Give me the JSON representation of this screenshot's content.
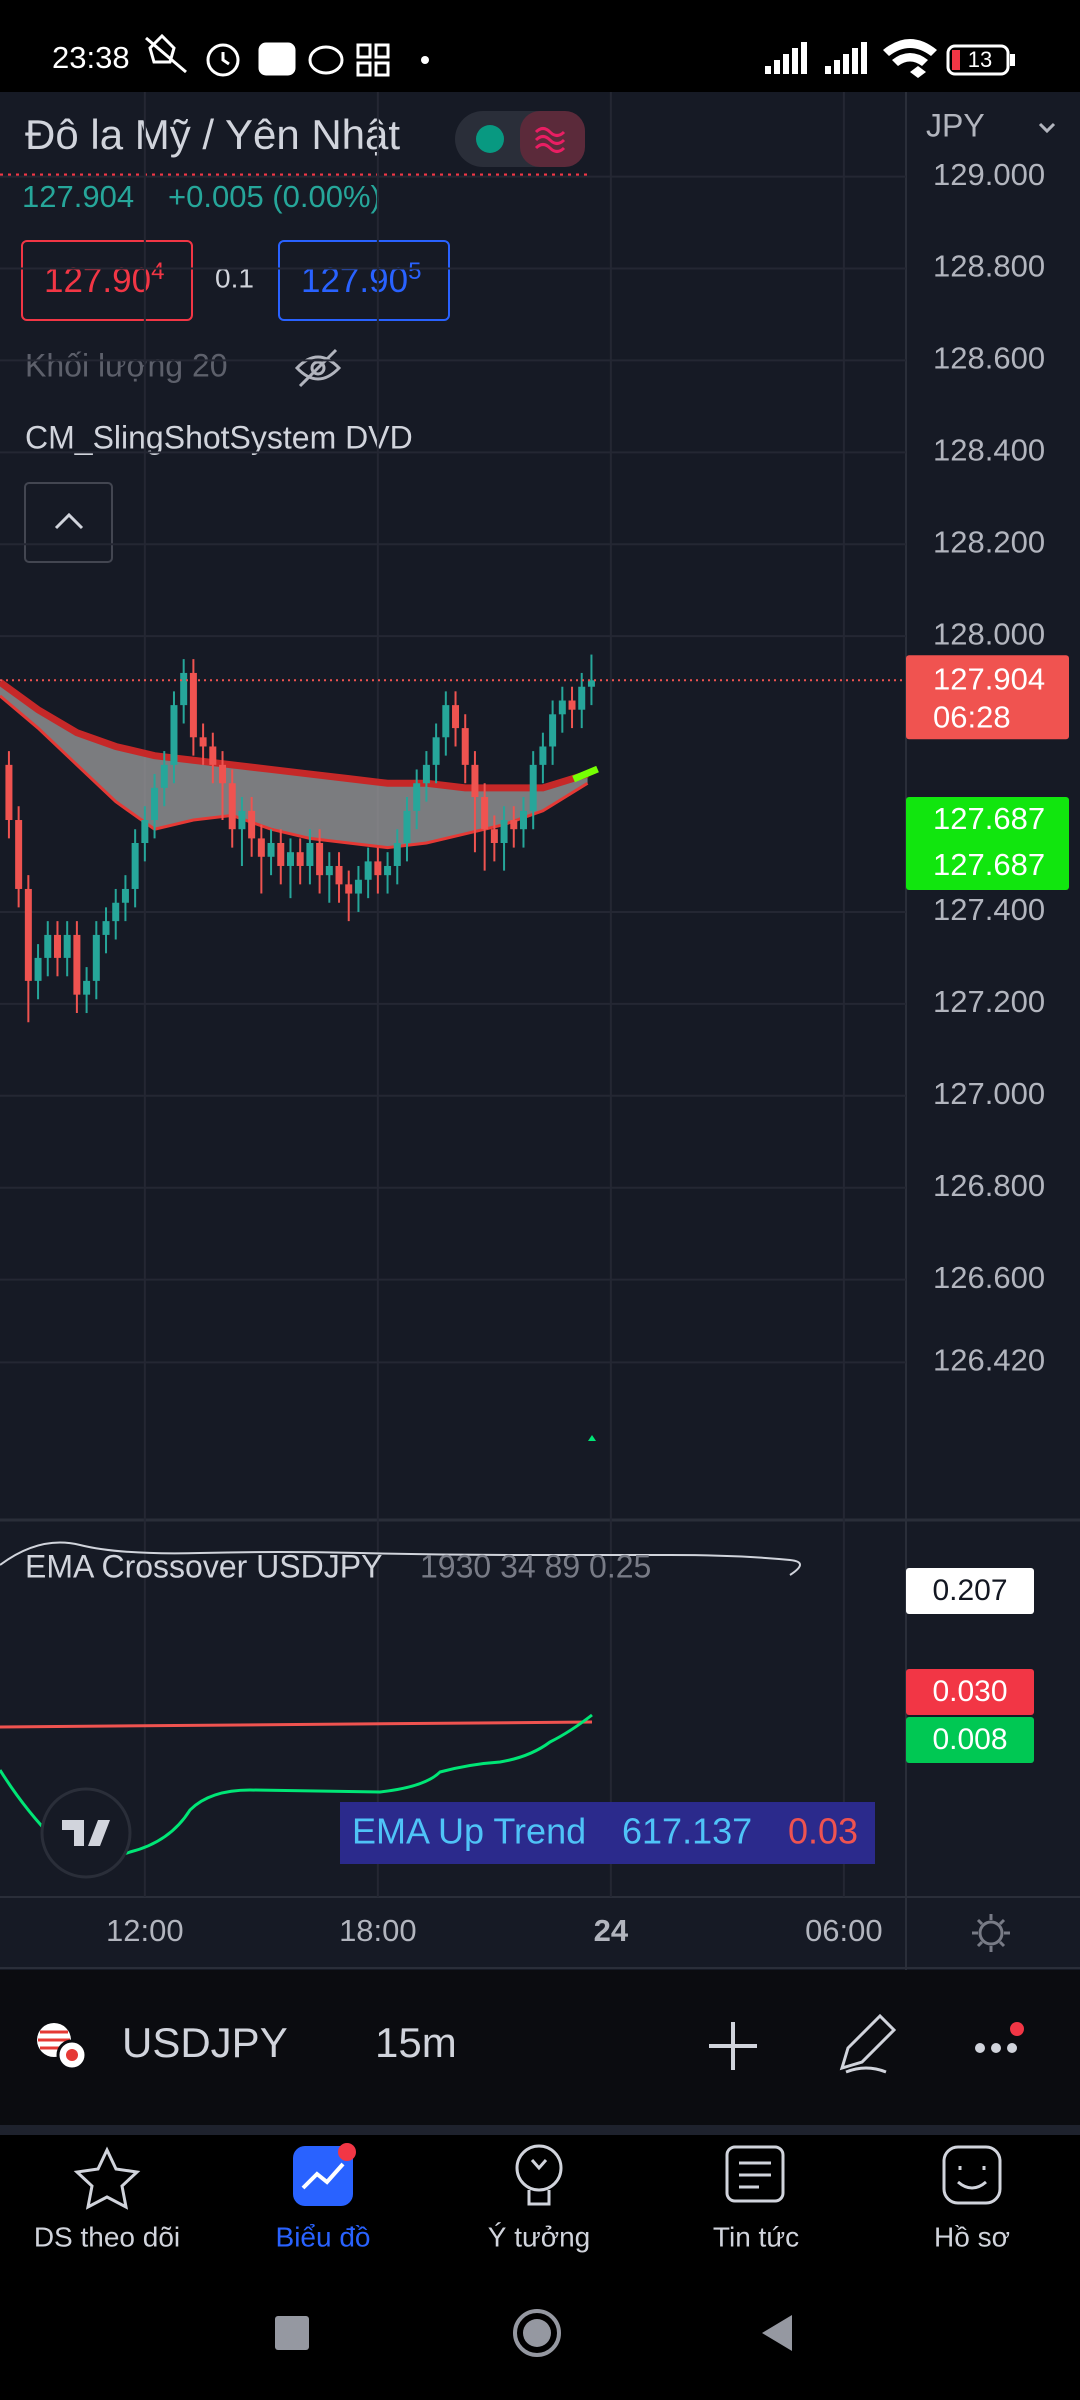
{
  "status_bar": {
    "time": "23:38",
    "battery": "13"
  },
  "header": {
    "title": "Đô la Mỹ / Yên Nhật",
    "currency": "JPY",
    "last_price": "127.904",
    "change": "+0.005 (0.00%)",
    "sell": {
      "main": "127.90",
      "pip": "4"
    },
    "spread": "0.1",
    "buy": {
      "main": "127.90",
      "pip": "5"
    },
    "volume_label": "Khối lượng 20",
    "indicator_name": "CM_SlingShotSystem DVD"
  },
  "price_chart": {
    "type": "candlestick",
    "x": [
      8.5,
      8.75,
      9,
      9.25,
      9.5,
      9.75,
      10,
      10.25,
      10.5,
      10.75,
      11,
      11.25,
      11.5,
      11.75,
      12,
      12.25,
      12.5,
      12.75,
      13,
      13.25,
      13.5,
      13.75,
      14,
      14.25,
      14.5,
      14.75,
      15,
      15.25,
      15.5,
      15.75,
      16,
      16.25,
      16.5,
      16.75,
      17,
      17.25,
      17.5,
      17.75,
      18,
      18.25,
      18.5,
      18.75,
      19,
      19.25,
      19.5,
      19.75,
      20,
      20.25,
      20.5,
      20.75,
      21,
      21.25,
      21.5,
      21.75,
      22,
      22.25,
      22.5,
      22.75,
      23,
      23.25,
      23.5
    ],
    "open": [
      127.72,
      127.6,
      127.45,
      127.25,
      127.3,
      127.35,
      127.3,
      127.35,
      127.22,
      127.25,
      127.35,
      127.38,
      127.42,
      127.45,
      127.55,
      127.6,
      127.67,
      127.72,
      127.85,
      127.92,
      127.78,
      127.76,
      127.72,
      127.68,
      127.58,
      127.62,
      127.56,
      127.52,
      127.55,
      127.5,
      127.53,
      127.5,
      127.55,
      127.48,
      127.5,
      127.46,
      127.44,
      127.47,
      127.51,
      127.48,
      127.5,
      127.55,
      127.62,
      127.68,
      127.72,
      127.78,
      127.85,
      127.8,
      127.72,
      127.65,
      127.58,
      127.55,
      127.6,
      127.58,
      127.62,
      127.72,
      127.76,
      127.83,
      127.86,
      127.84,
      127.89
    ],
    "high": [
      127.75,
      127.63,
      127.48,
      127.33,
      127.38,
      127.38,
      127.38,
      127.38,
      127.28,
      127.38,
      127.41,
      127.45,
      127.48,
      127.58,
      127.63,
      127.7,
      127.75,
      127.88,
      127.95,
      127.95,
      127.81,
      127.79,
      127.75,
      127.71,
      127.65,
      127.65,
      127.59,
      127.58,
      127.58,
      127.56,
      127.56,
      127.58,
      127.58,
      127.53,
      127.53,
      127.49,
      127.5,
      127.54,
      127.54,
      127.53,
      127.58,
      127.65,
      127.71,
      127.75,
      127.81,
      127.88,
      127.88,
      127.83,
      127.75,
      127.68,
      127.61,
      127.63,
      127.63,
      127.65,
      127.75,
      127.79,
      127.86,
      127.89,
      127.89,
      127.92,
      127.96
    ],
    "low": [
      127.56,
      127.41,
      127.16,
      127.21,
      127.26,
      127.26,
      127.26,
      127.18,
      127.18,
      127.21,
      127.31,
      127.34,
      127.38,
      127.41,
      127.51,
      127.56,
      127.63,
      127.68,
      127.81,
      127.74,
      127.72,
      127.68,
      127.6,
      127.54,
      127.5,
      127.52,
      127.44,
      127.48,
      127.46,
      127.43,
      127.46,
      127.46,
      127.44,
      127.42,
      127.42,
      127.38,
      127.4,
      127.43,
      127.44,
      127.44,
      127.46,
      127.51,
      127.58,
      127.64,
      127.68,
      127.74,
      127.76,
      127.68,
      127.53,
      127.49,
      127.51,
      127.49,
      127.54,
      127.54,
      127.58,
      127.68,
      127.72,
      127.79,
      127.8,
      127.8,
      127.85
    ],
    "close": [
      127.6,
      127.45,
      127.25,
      127.3,
      127.35,
      127.3,
      127.35,
      127.22,
      127.25,
      127.35,
      127.38,
      127.42,
      127.45,
      127.55,
      127.6,
      127.67,
      127.72,
      127.85,
      127.92,
      127.78,
      127.76,
      127.72,
      127.68,
      127.58,
      127.62,
      127.56,
      127.52,
      127.55,
      127.5,
      127.53,
      127.5,
      127.55,
      127.48,
      127.5,
      127.46,
      127.44,
      127.47,
      127.51,
      127.48,
      127.5,
      127.55,
      127.62,
      127.68,
      127.72,
      127.78,
      127.85,
      127.8,
      127.72,
      127.65,
      127.58,
      127.55,
      127.6,
      127.58,
      127.62,
      127.72,
      127.76,
      127.83,
      127.86,
      127.84,
      127.89,
      127.904
    ],
    "band": {
      "x": [
        8.27,
        9.25,
        10.25,
        11.25,
        12.25,
        13.25,
        14.25,
        15.25,
        16.25,
        17.25,
        18.25,
        19.25,
        20.25,
        21.25,
        22.25,
        23.4
      ],
      "upper": [
        127.9,
        127.84,
        127.79,
        127.76,
        127.74,
        127.73,
        127.72,
        127.71,
        127.7,
        127.69,
        127.68,
        127.68,
        127.67,
        127.67,
        127.67,
        127.7
      ],
      "lower": [
        127.87,
        127.8,
        127.72,
        127.64,
        127.58,
        127.6,
        127.61,
        127.58,
        127.56,
        127.55,
        127.54,
        127.55,
        127.57,
        127.59,
        127.62,
        127.68
      ],
      "upper_color": "#c62828",
      "lower_color": "#e53935",
      "fill_color": "#9e9e9e"
    },
    "xlim": [
      8.27,
      31.6
    ],
    "ylim": [
      126.077,
      129.184
    ],
    "yticks": [
      {
        "value": 129,
        "label": "129.000"
      },
      {
        "value": 128.8,
        "label": "128.800"
      },
      {
        "value": 128.6,
        "label": "128.600"
      },
      {
        "value": 128.4,
        "label": "128.400"
      },
      {
        "value": 128.2,
        "label": "128.200"
      },
      {
        "value": 128,
        "label": "128.000"
      },
      {
        "value": 127.4,
        "label": "127.400"
      },
      {
        "value": 127.2,
        "label": "127.200"
      },
      {
        "value": 127,
        "label": "127.000"
      },
      {
        "value": 126.8,
        "label": "126.800"
      },
      {
        "value": 126.6,
        "label": "126.600"
      },
      {
        "value": 126.42,
        "label": "126.420"
      }
    ],
    "xticks": [
      {
        "value": 12,
        "label": "12:00"
      },
      {
        "value": 18,
        "label": "18:00"
      },
      24,
      {
        "value": 30,
        "label": "06:00"
      }
    ],
    "grid": true,
    "up_color": "#26a69a",
    "down_color": "#ef5350",
    "last_price": 127.904,
    "countdown": "06:28",
    "band_levels": [
      127.687,
      127.687
    ]
  },
  "indicator_panel": {
    "title": "EMA Crossover USDJPY",
    "params": "1930 34 89 0.25",
    "levels": [
      "0.207",
      "0.030",
      "0.008"
    ],
    "legend": {
      "name": "EMA Up Trend",
      "value": "617.137",
      "signal": "0.03"
    }
  },
  "toolbar": {
    "symbol": "USDJPY",
    "interval": "15m"
  },
  "nav": [
    {
      "label": "DS theo dõi"
    },
    {
      "label": "Biểu đồ"
    },
    {
      "label": "Ý tưởng"
    },
    {
      "label": "Tin tức"
    },
    {
      "label": "Hồ sơ"
    }
  ]
}
